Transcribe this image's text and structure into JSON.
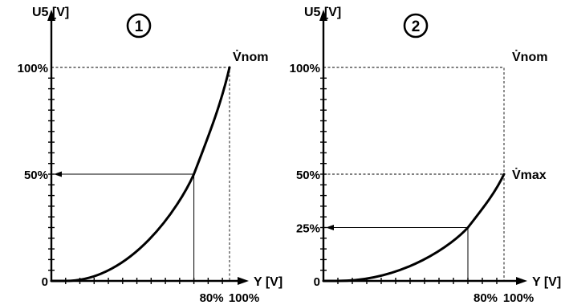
{
  "chart_data": [
    {
      "type": "line",
      "panel_label": "1",
      "ylabel": "U5 [V]",
      "xlabel": "Y [V]",
      "curve_end_label": "V̇nom",
      "y_ticks": [
        "0",
        "50%",
        "100%"
      ],
      "x_ticks": [
        "80%",
        "100%"
      ],
      "xlim": [
        0,
        100
      ],
      "ylim": [
        0,
        100
      ],
      "series": [
        {
          "x": [
            0,
            10,
            20,
            30,
            40,
            50,
            60,
            70,
            80,
            90,
            100
          ],
          "y": [
            0,
            1,
            4,
            9,
            16,
            25,
            36,
            49,
            50,
            74,
            100
          ]
        }
      ],
      "highlight": {
        "x": 80,
        "y": 50
      }
    },
    {
      "type": "line",
      "panel_label": "2",
      "ylabel": "U5 [V]",
      "xlabel": "Y [V]",
      "top_label": "V̇nom",
      "curve_end_label": "V̇max",
      "y_ticks": [
        "0",
        "25%",
        "50%",
        "100%"
      ],
      "x_ticks": [
        "80%",
        "100%"
      ],
      "xlim": [
        0,
        100
      ],
      "ylim": [
        0,
        100
      ],
      "series": [
        {
          "x": [
            0,
            10,
            20,
            30,
            40,
            50,
            60,
            70,
            80,
            90,
            100
          ],
          "y": [
            0,
            0.5,
            2,
            4.5,
            8,
            12.5,
            18,
            24.5,
            25,
            37,
            50
          ]
        }
      ],
      "highlight": {
        "x": 80,
        "y": 25
      }
    }
  ]
}
